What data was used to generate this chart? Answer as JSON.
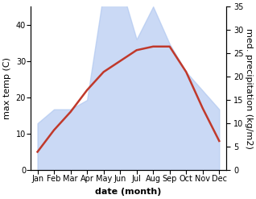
{
  "months": [
    "Jan",
    "Feb",
    "Mar",
    "Apr",
    "May",
    "Jun",
    "Jul",
    "Aug",
    "Sep",
    "Oct",
    "Nov",
    "Dec"
  ],
  "month_indices": [
    0,
    1,
    2,
    3,
    4,
    5,
    6,
    7,
    8,
    9,
    10,
    11
  ],
  "max_temp": [
    5,
    11,
    16,
    22,
    27,
    30,
    33,
    34,
    34,
    27,
    17,
    8
  ],
  "precipitation": [
    10,
    13,
    13,
    15,
    38,
    40,
    28,
    35,
    27,
    21,
    17,
    13
  ],
  "temp_ylim": [
    0,
    45
  ],
  "precip_ylim": [
    0,
    35
  ],
  "temp_yticks": [
    0,
    10,
    20,
    30,
    40
  ],
  "precip_yticks": [
    0,
    5,
    10,
    15,
    20,
    25,
    30,
    35
  ],
  "temp_color": "#c0392b",
  "precip_fill_color": "#aec6f0",
  "precip_fill_alpha": 0.65,
  "xlabel": "date (month)",
  "ylabel_left": "max temp (C)",
  "ylabel_right": "med. precipitation (kg/m2)",
  "bg_color": "#ffffff",
  "xlabel_fontsize": 8,
  "ylabel_fontsize": 8,
  "tick_fontsize": 7,
  "linewidth": 1.8
}
